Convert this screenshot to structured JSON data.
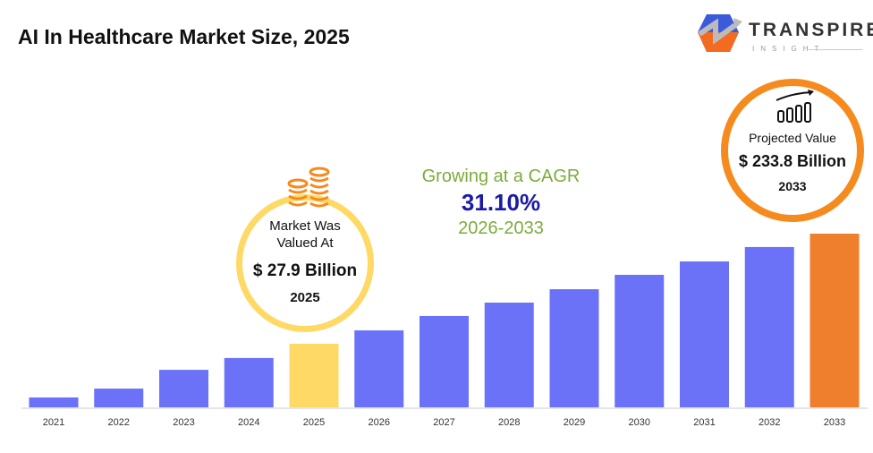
{
  "title": "AI In Healthcare Market Size, 2025",
  "logo": {
    "name": "TRANSPIRE",
    "sub": "INSIGHT"
  },
  "cagr": {
    "label": "Growing at a CAGR",
    "value": "31.10%",
    "period": "2026-2033",
    "label_color": "#7cab3c",
    "value_color": "#1a1aa6"
  },
  "valued_callout": {
    "line1": "Market Was",
    "line2": "Valued At",
    "value": "$ 27.9 Billion",
    "year": "2025",
    "icon": "coins-icon"
  },
  "projected_callout": {
    "label": "Projected Value",
    "value": "$ 233.8 Billion",
    "year": "2033",
    "icon": "growth-bars-icon"
  },
  "chart_data": {
    "type": "bar",
    "categories": [
      "2021",
      "2022",
      "2023",
      "2024",
      "2025",
      "2026",
      "2027",
      "2028",
      "2029",
      "2030",
      "2031",
      "2032",
      "2033"
    ],
    "values_relative_percent": [
      5.7,
      10.8,
      21.6,
      28.4,
      36.6,
      44.3,
      52.6,
      60.3,
      68.0,
      76.3,
      84.0,
      92.3,
      100
    ],
    "colors": {
      "default": "#6b72f8",
      "highlight_2025": "#ffd966",
      "highlight_2033": "#f07f2d"
    },
    "y_axis_shown": false,
    "grid": false
  }
}
